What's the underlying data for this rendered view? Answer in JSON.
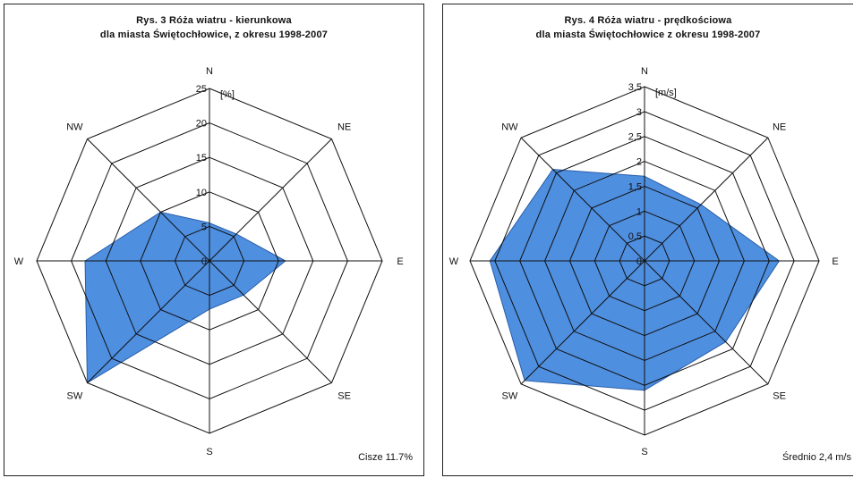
{
  "chart_data": [
    {
      "type": "radar",
      "title_line1": "Rys. 3  Róża wiatru - kierunkowa",
      "title_line2": "dla miasta Świętochłowice, z okresu 1998-2007",
      "unit": "[%]",
      "directions": [
        "N",
        "NE",
        "E",
        "SE",
        "S",
        "SW",
        "W",
        "NW"
      ],
      "values": [
        5.5,
        5.5,
        11,
        7,
        7,
        25,
        18,
        10
      ],
      "rlim": [
        0,
        25
      ],
      "ticks": [
        "0",
        "5",
        "10",
        "15",
        "20",
        "25"
      ],
      "tick_values": [
        0,
        5,
        10,
        15,
        20,
        25
      ],
      "footnote": "Cisze 11.7%",
      "fill_color": "#4f8fe0",
      "grid": true
    },
    {
      "type": "radar",
      "title_line1": "Rys. 4  Róża wiatru - prędkościowa",
      "title_line2": "dla miasta Świętochłowice z okresu 1998-2007",
      "unit": "[m/s]",
      "directions": [
        "N",
        "NE",
        "E",
        "SE",
        "S",
        "SW",
        "W",
        "NW"
      ],
      "values": [
        1.7,
        1.6,
        2.7,
        2.3,
        2.6,
        3.4,
        3.1,
        2.6
      ],
      "rlim": [
        0,
        3.5
      ],
      "ticks": [
        "0",
        "0,5",
        "1",
        "1,5",
        "2",
        "2,5",
        "3",
        "3,5"
      ],
      "tick_values": [
        0,
        0.5,
        1,
        1.5,
        2,
        2.5,
        3,
        3.5
      ],
      "footnote": "Średnio 2,4 m/s",
      "fill_color": "#4f8fe0",
      "grid": true
    }
  ]
}
